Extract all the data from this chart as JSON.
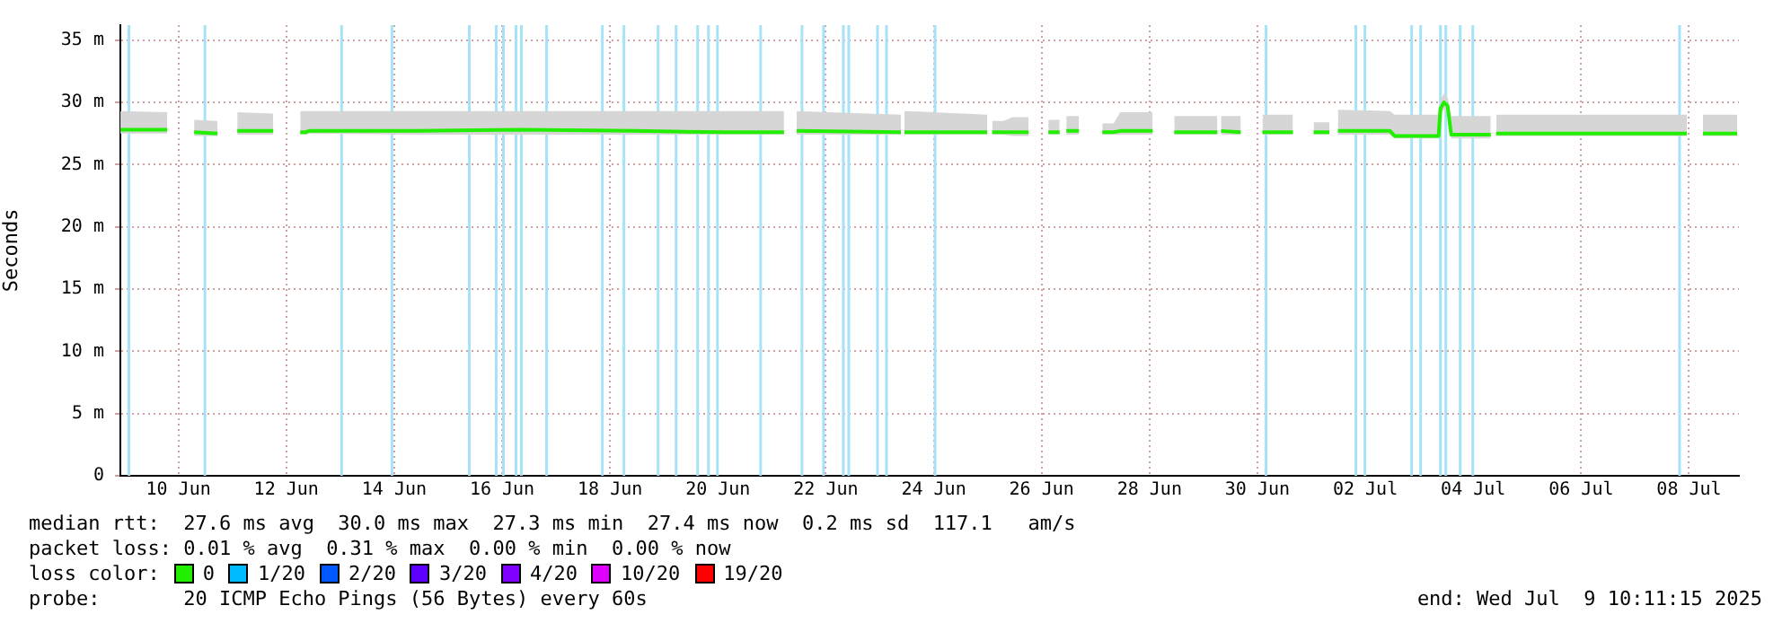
{
  "chart_data": {
    "type": "line",
    "ylabel": "Seconds",
    "legend_title": "loss color:",
    "legend": "bottom",
    "grid": true,
    "marker": "none",
    "line_style": "solid",
    "xlim": [
      "2025-06-09T10:11",
      "2025-07-09T10:11"
    ],
    "xticks": [
      {
        "value": "2025-06-10T12:00",
        "label": "10 Jun"
      },
      {
        "value": "2025-06-12T12:00",
        "label": "12 Jun"
      },
      {
        "value": "2025-06-14T12:00",
        "label": "14 Jun"
      },
      {
        "value": "2025-06-16T12:00",
        "label": "16 Jun"
      },
      {
        "value": "2025-06-18T12:00",
        "label": "18 Jun"
      },
      {
        "value": "2025-06-20T12:00",
        "label": "20 Jun"
      },
      {
        "value": "2025-06-22T12:00",
        "label": "22 Jun"
      },
      {
        "value": "2025-06-24T12:00",
        "label": "24 Jun"
      },
      {
        "value": "2025-06-26T12:00",
        "label": "26 Jun"
      },
      {
        "value": "2025-06-28T12:00",
        "label": "28 Jun"
      },
      {
        "value": "2025-06-30T12:00",
        "label": "30 Jun"
      },
      {
        "value": "2025-07-02T12:00",
        "label": "02 Jul"
      },
      {
        "value": "2025-07-04T12:00",
        "label": "04 Jul"
      },
      {
        "value": "2025-07-06T12:00",
        "label": "06 Jul"
      },
      {
        "value": "2025-07-08T12:00",
        "label": "08 Jul"
      }
    ],
    "ylim": [
      0,
      36.2
    ],
    "yticks": [
      0,
      {
        "value": 5,
        "label": "5 m"
      },
      {
        "value": 10,
        "label": "10 m"
      },
      {
        "value": 15,
        "label": "15 m"
      },
      {
        "value": 20,
        "label": "20 m"
      },
      {
        "value": 25,
        "label": "25 m"
      },
      {
        "value": 30,
        "label": "30 m"
      },
      {
        "value": 35,
        "label": "35 m"
      }
    ],
    "series": [
      {
        "name": "0",
        "color": "#22ee00",
        "x": [
          "2025-06-09T10:12",
          "2025-06-10T07:00",
          "2025-06-10T13:00",
          "2025-06-10T19:00",
          "2025-06-11T05:24",
          "2025-06-11T10:00",
          "2025-06-11T14:12",
          "2025-06-12T06:12",
          "2025-06-12T12:00",
          "2025-06-12T18:12",
          "2025-06-12T20:36",
          "2025-06-12T22:12",
          "2025-06-14T22:00",
          "2025-06-16T20:36",
          "2025-06-18T23:00",
          "2025-06-20T15:00",
          "2025-06-21T17:24",
          "2025-06-21T20:00",
          "2025-06-21T23:00",
          "2025-06-23T21:24",
          "2025-06-23T22:12",
          "2025-06-23T23:00",
          "2025-06-25T11:48",
          "2025-06-25T13:00",
          "2025-06-25T14:00",
          "2025-06-25T19:00",
          "2025-06-25T23:00",
          "2025-06-26T06:12",
          "2025-06-26T12:00",
          "2025-06-26T15:00",
          "2025-06-26T20:00",
          "2025-06-26T21:00",
          "2025-06-26T23:00",
          "2025-06-27T04:36",
          "2025-06-27T11:00",
          "2025-06-27T15:00",
          "2025-06-27T20:00",
          "2025-06-27T23:00",
          "2025-06-28T13:24",
          "2025-06-28T18:00",
          "2025-06-28T23:00",
          "2025-06-29T18:12",
          "2025-06-29T19:00",
          "2025-06-29T19:48",
          "2025-06-30T04:36",
          "2025-06-30T09:00",
          "2025-06-30T14:12",
          "2025-07-01T03:48",
          "2025-07-01T09:00",
          "2025-07-01T13:00",
          "2025-07-01T20:00",
          "2025-07-01T21:00",
          "2025-07-01T23:48",
          "2025-07-02T23:00",
          "2025-07-03T01:00",
          "2025-07-03T20:36",
          "2025-07-03T21:24",
          "2025-07-03T23:00",
          "2025-07-04T00:36",
          "2025-07-04T02:12",
          "2025-07-04T19:48",
          "2025-07-04T21:00",
          "2025-07-04T22:12",
          "2025-07-06T04:36",
          "2025-07-08T11:00",
          "2025-07-08T15:00",
          "2025-07-08T18:12",
          "2025-07-09T09:24"
        ],
        "values": [
          27.8,
          27.8,
          null,
          27.6,
          27.5,
          null,
          27.7,
          27.7,
          null,
          27.6,
          27.6,
          27.7,
          27.7,
          27.8,
          27.7,
          27.6,
          27.6,
          null,
          27.7,
          27.6,
          null,
          27.6,
          27.6,
          null,
          27.6,
          27.6,
          27.6,
          27.6,
          null,
          27.6,
          27.6,
          null,
          27.7,
          27.7,
          null,
          27.6,
          27.6,
          27.7,
          27.7,
          null,
          27.6,
          27.6,
          null,
          27.7,
          27.6,
          null,
          27.6,
          27.6,
          null,
          27.6,
          27.6,
          null,
          27.7,
          27.7,
          27.3,
          27.3,
          29.5,
          30.0,
          29.7,
          27.4,
          27.4,
          null,
          27.5,
          27.5,
          27.5,
          null,
          27.5,
          27.5
        ],
        "lower": [
          27.5,
          27.5,
          null,
          27.3,
          27.3,
          null,
          27.4,
          27.4,
          null,
          27.4,
          27.4,
          27.5,
          27.4,
          27.4,
          27.4,
          27.4,
          27.4,
          null,
          27.4,
          27.4,
          null,
          27.4,
          27.4,
          null,
          27.4,
          27.4,
          27.3,
          27.3,
          null,
          27.4,
          27.4,
          null,
          27.4,
          27.4,
          null,
          27.4,
          27.4,
          27.4,
          27.4,
          null,
          27.4,
          27.4,
          null,
          27.4,
          27.4,
          null,
          27.4,
          27.4,
          null,
          27.4,
          27.4,
          null,
          27.4,
          27.4,
          27.1,
          27.1,
          29.0,
          29.4,
          29.1,
          27.1,
          27.1,
          null,
          27.3,
          27.3,
          27.3,
          null,
          27.3,
          27.3
        ],
        "upper": [
          29.3,
          29.2,
          null,
          28.6,
          28.5,
          null,
          29.2,
          29.1,
          null,
          29.3,
          29.3,
          29.3,
          29.3,
          29.3,
          29.3,
          29.3,
          29.3,
          null,
          29.3,
          29.0,
          null,
          29.3,
          29.0,
          null,
          28.5,
          28.5,
          28.8,
          28.8,
          null,
          28.6,
          28.6,
          null,
          28.9,
          28.9,
          null,
          28.3,
          28.3,
          29.2,
          29.2,
          null,
          28.9,
          28.9,
          null,
          28.9,
          28.9,
          null,
          29.0,
          29.0,
          null,
          28.4,
          28.4,
          null,
          29.4,
          29.3,
          29.0,
          29.0,
          30.2,
          30.7,
          30.4,
          28.9,
          28.9,
          null,
          29.0,
          29.0,
          29.0,
          null,
          29.0,
          29.0
        ]
      },
      {
        "name": "1/20",
        "color": "#00bbff"
      },
      {
        "name": "2/20",
        "color": "#0059ff"
      },
      {
        "name": "3/20",
        "color": "#5e00ff"
      },
      {
        "name": "4/20",
        "color": "#7e00ff"
      },
      {
        "name": "10/20",
        "color": "#dd00ff"
      },
      {
        "name": "19/20",
        "color": "#ff0000"
      }
    ],
    "ref_lines": [
      {
        "axis": "x",
        "value": "2025-06-09T14:00",
        "color": "#a6e2f8"
      },
      {
        "axis": "x",
        "value": "2025-06-10T23:48",
        "color": "#a6e2f8"
      },
      {
        "axis": "x",
        "value": "2025-06-13T12:36",
        "color": "#a6e2f8"
      },
      {
        "axis": "x",
        "value": "2025-06-14T11:00",
        "color": "#a6e2f8"
      },
      {
        "axis": "x",
        "value": "2025-06-15T21:24",
        "color": "#a6e2f8"
      },
      {
        "axis": "x",
        "value": "2025-06-16T09:24",
        "color": "#a6e2f8"
      },
      {
        "axis": "x",
        "value": "2025-06-16T12:36",
        "color": "#a6e2f8"
      },
      {
        "axis": "x",
        "value": "2025-06-16T18:12",
        "color": "#a6e2f8"
      },
      {
        "axis": "x",
        "value": "2025-06-16T20:36",
        "color": "#a6e2f8"
      },
      {
        "axis": "x",
        "value": "2025-06-17T07:48",
        "color": "#a6e2f8"
      },
      {
        "axis": "x",
        "value": "2025-06-18T08:36",
        "color": "#a6e2f8"
      },
      {
        "axis": "x",
        "value": "2025-06-18T18:12",
        "color": "#a6e2f8"
      },
      {
        "axis": "x",
        "value": "2025-06-19T09:24",
        "color": "#a6e2f8"
      },
      {
        "axis": "x",
        "value": "2025-06-19T17:24",
        "color": "#a6e2f8"
      },
      {
        "axis": "x",
        "value": "2025-06-20T03:00",
        "color": "#a6e2f8"
      },
      {
        "axis": "x",
        "value": "2025-06-20T07:48",
        "color": "#a6e2f8"
      },
      {
        "axis": "x",
        "value": "2025-06-20T11:48",
        "color": "#a6e2f8"
      },
      {
        "axis": "x",
        "value": "2025-06-21T07:00",
        "color": "#a6e2f8"
      },
      {
        "axis": "x",
        "value": "2025-06-22T01:24",
        "color": "#a6e2f8"
      },
      {
        "axis": "x",
        "value": "2025-06-22T11:00",
        "color": "#a6e2f8"
      },
      {
        "axis": "x",
        "value": "2025-06-22T19:48",
        "color": "#a6e2f8"
      },
      {
        "axis": "x",
        "value": "2025-06-22T22:12",
        "color": "#a6e2f8"
      },
      {
        "axis": "x",
        "value": "2025-06-23T11:00",
        "color": "#a6e2f8"
      },
      {
        "axis": "x",
        "value": "2025-06-23T15:00",
        "color": "#a6e2f8"
      },
      {
        "axis": "x",
        "value": "2025-06-24T12:36",
        "color": "#a6e2f8"
      },
      {
        "axis": "x",
        "value": "2025-06-30T15:48",
        "color": "#a6e2f8"
      },
      {
        "axis": "x",
        "value": "2025-07-02T07:48",
        "color": "#a6e2f8"
      },
      {
        "axis": "x",
        "value": "2025-07-02T11:48",
        "color": "#a6e2f8"
      },
      {
        "axis": "x",
        "value": "2025-07-03T08:36",
        "color": "#a6e2f8"
      },
      {
        "axis": "x",
        "value": "2025-07-03T12:36",
        "color": "#a6e2f8"
      },
      {
        "axis": "x",
        "value": "2025-07-03T21:24",
        "color": "#a6e2f8"
      },
      {
        "axis": "x",
        "value": "2025-07-03T23:48",
        "color": "#a6e2f8"
      },
      {
        "axis": "x",
        "value": "2025-07-04T06:12",
        "color": "#a6e2f8"
      },
      {
        "axis": "x",
        "value": "2025-07-04T11:48",
        "color": "#a6e2f8"
      },
      {
        "axis": "x",
        "value": "2025-07-08T07:48",
        "color": "#a6e2f8"
      }
    ],
    "annotations": [
      "median rtt:  27.6 ms avg  30.0 ms max  27.3 ms min  27.4 ms now  0.2 ms sd  117.1   am/s",
      "packet loss: 0.01 % avg  0.31 % max  0.00 % min  0.00 % now",
      "probe:       20 ICMP Echo Pings (56 Bytes) every 60s",
      "end: Wed Jul  9 10:11:15 2025"
    ]
  }
}
